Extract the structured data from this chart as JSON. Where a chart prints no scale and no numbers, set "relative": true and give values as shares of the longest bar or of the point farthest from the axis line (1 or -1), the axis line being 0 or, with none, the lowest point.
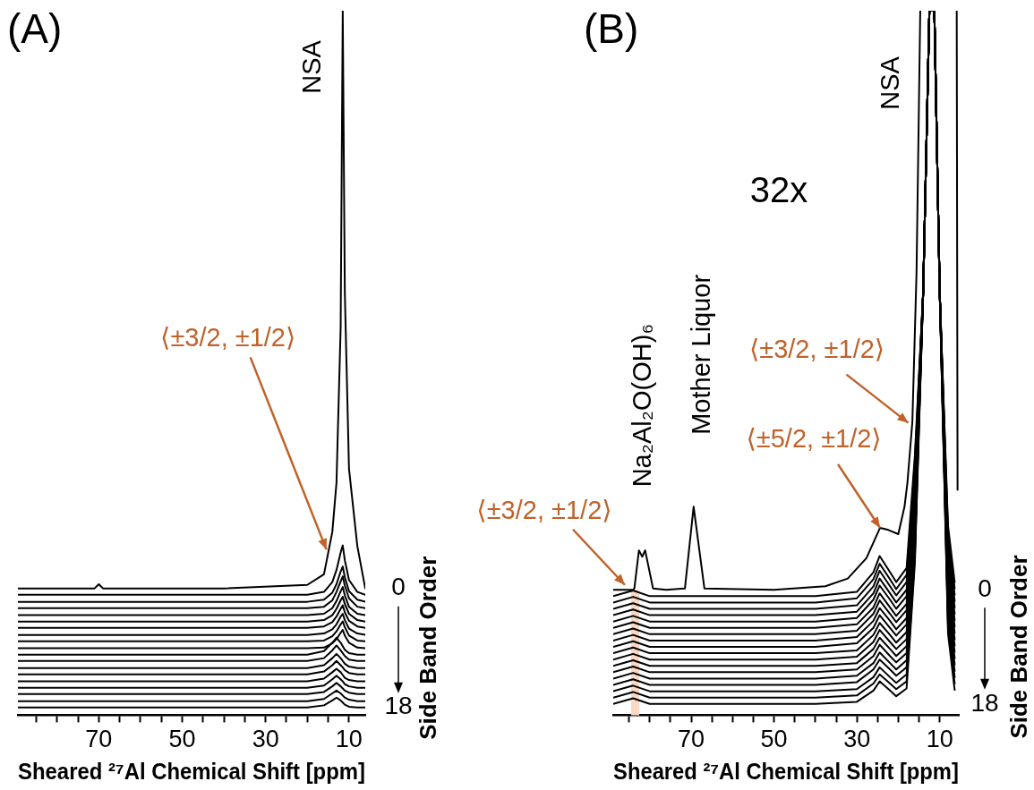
{
  "chart_data": [
    {
      "type": "line",
      "title": "(A)",
      "xlabel": "Sheared ²⁷Al Chemical Shift [ppm]",
      "y2label": "Side Band Order",
      "relative": true,
      "marker": "none",
      "xlim": [
        89.4,
        6.1
      ],
      "xticks": [
        {
          "value": 85,
          "label": null
        },
        {
          "value": 80,
          "label": null
        },
        {
          "value": 75,
          "label": null
        },
        70,
        {
          "value": 65,
          "label": null
        },
        {
          "value": 60,
          "label": null
        },
        {
          "value": 55,
          "label": null
        },
        50,
        {
          "value": 45,
          "label": null
        },
        {
          "value": 40,
          "label": null
        },
        {
          "value": 35,
          "label": null
        },
        30,
        {
          "value": 25,
          "label": null
        },
        {
          "value": 20,
          "label": null
        },
        {
          "value": 15,
          "label": null
        },
        10
      ],
      "x": [
        89.4,
        70,
        20,
        16,
        14,
        13,
        12,
        11.5,
        11,
        10,
        8,
        6.1
      ],
      "annotations": [
        {
          "text": "NSA",
          "x": 11.5,
          "y": 1
        },
        {
          "text": "⟨±3/2, ±1/2⟩",
          "x": 15.4,
          "y": 0.235
        }
      ],
      "series": [
        {
          "name": "0",
          "color": "#000000",
          "x": [
            89.4,
            80,
            71,
            70,
            69,
            40,
            20,
            16,
            14,
            13,
            12,
            11.5,
            11,
            10,
            8,
            6.1
          ],
          "values": [
            0.18,
            0.18,
            0.18,
            0.186,
            0.18,
            0.18,
            0.185,
            0.2,
            0.26,
            0.33,
            0.55,
            1,
            0.6,
            0.35,
            0.24,
            0.18
          ]
        },
        {
          "color": "#000000",
          "values": [
            0.171,
            0.171,
            0.171,
            0.175,
            0.189,
            0.206,
            0.231,
            0.241,
            0.22,
            0.192,
            0.175,
            0.171
          ]
        },
        {
          "color": "#000000",
          "values": [
            0.161,
            0.161,
            0.161,
            0.164,
            0.174,
            0.186,
            0.204,
            0.211,
            0.196,
            0.176,
            0.164,
            0.161
          ]
        },
        {
          "color": "#000000",
          "values": [
            0.152,
            0.152,
            0.152,
            0.154,
            0.163,
            0.175,
            0.19,
            0.197,
            0.184,
            0.166,
            0.154,
            0.152
          ]
        },
        {
          "color": "#000000",
          "values": [
            0.142,
            0.142,
            0.142,
            0.144,
            0.152,
            0.162,
            0.176,
            0.182,
            0.17,
            0.154,
            0.144,
            0.142
          ]
        },
        {
          "color": "#000000",
          "values": [
            0.133,
            0.133,
            0.133,
            0.135,
            0.142,
            0.151,
            0.163,
            0.168,
            0.158,
            0.144,
            0.135,
            0.133
          ]
        },
        {
          "color": "#000000",
          "values": [
            0.124,
            0.124,
            0.124,
            0.126,
            0.132,
            0.14,
            0.151,
            0.156,
            0.146,
            0.134,
            0.126,
            0.124
          ]
        },
        {
          "color": "#000000",
          "values": [
            0.114,
            0.114,
            0.114,
            0.116,
            0.122,
            0.129,
            0.14,
            0.144,
            0.135,
            0.123,
            0.116,
            0.114
          ]
        },
        {
          "color": "#000000",
          "values": [
            0.105,
            0.105,
            0.105,
            0.106,
            0.112,
            0.119,
            0.129,
            0.133,
            0.125,
            0.113,
            0.106,
            0.105
          ]
        },
        {
          "color": "#000000",
          "values": [
            0.095,
            0.095,
            0.095,
            0.096,
            0.102,
            0.108,
            0.117,
            0.121,
            0.113,
            0.103,
            0.096,
            0.095
          ]
        },
        {
          "color": "#000000",
          "values": [
            0.086,
            0.086,
            0.086,
            0.091,
            0.103,
            0.11,
            0.103,
            0.098,
            0.093,
            0.088,
            0.086,
            0.086
          ]
        },
        {
          "color": "#000000",
          "values": [
            0.077,
            0.077,
            0.077,
            0.081,
            0.092,
            0.099,
            0.092,
            0.088,
            0.084,
            0.079,
            0.077,
            0.077
          ]
        },
        {
          "color": "#000000",
          "values": [
            0.067,
            0.067,
            0.067,
            0.071,
            0.081,
            0.087,
            0.081,
            0.077,
            0.073,
            0.069,
            0.067,
            0.067
          ]
        },
        {
          "color": "#000000",
          "values": [
            0.058,
            0.058,
            0.058,
            0.062,
            0.071,
            0.077,
            0.071,
            0.068,
            0.064,
            0.06,
            0.058,
            0.058
          ]
        },
        {
          "color": "#000000",
          "values": [
            0.048,
            0.048,
            0.048,
            0.052,
            0.061,
            0.066,
            0.061,
            0.057,
            0.053,
            0.05,
            0.048,
            0.048
          ]
        },
        {
          "color": "#000000",
          "values": [
            0.039,
            0.039,
            0.039,
            0.042,
            0.051,
            0.056,
            0.051,
            0.048,
            0.044,
            0.041,
            0.039,
            0.039
          ]
        },
        {
          "color": "#000000",
          "values": [
            0.03,
            0.03,
            0.03,
            0.033,
            0.041,
            0.046,
            0.041,
            0.038,
            0.035,
            0.032,
            0.03,
            0.03
          ]
        },
        {
          "color": "#000000",
          "values": [
            0.02,
            0.02,
            0.02,
            0.023,
            0.031,
            0.035,
            0.031,
            0.028,
            0.025,
            0.022,
            0.02,
            0.02
          ]
        },
        {
          "name": "18",
          "color": "#000000",
          "values": [
            0.011,
            0.011,
            0.011,
            0.014,
            0.021,
            0.025,
            0.021,
            0.018,
            0.015,
            0.012,
            0.011,
            0.011
          ]
        }
      ]
    },
    {
      "type": "line",
      "title": "(B)",
      "xlabel": "Sheared ²⁷Al Chemical Shift [ppm]",
      "y2label": "Side Band Order",
      "relative": true,
      "marker": "none",
      "xlim": [
        88.8,
        5.4
      ],
      "xticks": [
        {
          "value": 85,
          "label": null
        },
        {
          "value": 80,
          "label": null
        },
        {
          "value": 75,
          "label": null
        },
        70,
        {
          "value": 65,
          "label": null
        },
        {
          "value": 60,
          "label": null
        },
        {
          "value": 55,
          "label": null
        },
        50,
        {
          "value": 45,
          "label": null
        },
        {
          "value": 40,
          "label": null
        },
        {
          "value": 35,
          "label": null
        },
        30,
        {
          "value": 25,
          "label": null
        },
        {
          "value": 20,
          "label": null
        },
        {
          "value": 15,
          "label": null
        },
        10
      ],
      "x": [
        88.8,
        84,
        80,
        40,
        30,
        26,
        24.5,
        22,
        20.5,
        18,
        16,
        14,
        12.5,
        11.3,
        10,
        8,
        6.4
      ],
      "bands": [
        {
          "axis": "x",
          "from": 84.5,
          "to": 82.5,
          "color": "#f9d9c4"
        }
      ],
      "annotations": [
        "32x",
        {
          "text": "NSA",
          "x": 11.3,
          "y": 1
        },
        {
          "text": "Na₂Al₂O(OH)₆",
          "x": 82.6,
          "y": 0.234
        },
        {
          "text": "Mother Liquor",
          "x": 69.4,
          "y": 0.296
        },
        {
          "text": "⟨±3/2, ±1/2⟩",
          "x": 17.6,
          "y": 0.415
        },
        {
          "text": "⟨±5/2, ±1/2⟩",
          "x": 24.4,
          "y": 0.266
        },
        {
          "text": "⟨±3/2, ±1/2⟩",
          "x": 86,
          "y": 0.185
        }
      ],
      "series": [
        {
          "name": "0",
          "color": "#000000",
          "x": [
            88.8,
            84,
            83.7,
            82.6,
            81.8,
            81.1,
            79.2,
            76,
            71.5,
            69.4,
            66.8,
            50,
            37.6,
            32.2,
            27.7,
            24.4,
            22.4,
            20,
            18.5,
            17.8,
            16.6,
            15.6,
            14.7,
            10,
            5.9,
            5.7
          ],
          "values": [
            0.178,
            0.178,
            0.18,
            0.234,
            0.225,
            0.234,
            0.18,
            0.178,
            0.18,
            0.296,
            0.18,
            0.178,
            0.183,
            0.194,
            0.223,
            0.266,
            0.263,
            0.257,
            0.296,
            0.33,
            0.417,
            0.629,
            1,
            null,
            1,
            0.32
          ]
        },
        {
          "color": "#000000",
          "values": [
            0.169,
            0.177,
            0.169,
            0.169,
            0.175,
            0.203,
            0.226,
            0.203,
            0.189,
            0.209,
            0.369,
            0.6,
            1,
            1,
            0.6,
            0.269,
            0.189
          ]
        },
        {
          "color": "#000000",
          "values": [
            0.16,
            0.168,
            0.16,
            0.16,
            0.166,
            0.193,
            0.215,
            0.193,
            0.179,
            0.199,
            0.36,
            0.6,
            1,
            1,
            0.6,
            0.26,
            0.18
          ]
        },
        {
          "color": "#000000",
          "values": [
            0.151,
            0.159,
            0.151,
            0.151,
            0.156,
            0.183,
            0.205,
            0.183,
            0.17,
            0.189,
            0.351,
            0.6,
            1,
            1,
            0.6,
            0.251,
            0.171
          ]
        },
        {
          "color": "#000000",
          "values": [
            0.142,
            0.15,
            0.142,
            0.142,
            0.147,
            0.173,
            0.194,
            0.173,
            0.16,
            0.178,
            0.342,
            0.6,
            1,
            1,
            0.6,
            0.242,
            0.162
          ]
        },
        {
          "color": "#000000",
          "values": [
            0.133,
            0.141,
            0.133,
            0.133,
            0.138,
            0.164,
            0.184,
            0.164,
            0.151,
            0.169,
            0.333,
            0.6,
            1,
            1,
            0.6,
            0.233,
            0.153
          ]
        },
        {
          "color": "#000000",
          "values": [
            0.124,
            0.132,
            0.124,
            0.124,
            0.129,
            0.153,
            0.173,
            0.153,
            0.141,
            0.158,
            0.324,
            0.6,
            1,
            1,
            0.6,
            0.224,
            0.144
          ]
        },
        {
          "color": "#000000",
          "values": [
            0.115,
            0.123,
            0.115,
            0.115,
            0.12,
            0.144,
            0.163,
            0.144,
            0.132,
            0.149,
            0.315,
            0.6,
            1,
            1,
            0.6,
            0.215,
            0.135
          ]
        },
        {
          "color": "#000000",
          "values": [
            0.106,
            0.114,
            0.106,
            0.106,
            0.111,
            0.134,
            0.152,
            0.134,
            0.122,
            0.138,
            0.306,
            0.6,
            1,
            1,
            0.6,
            0.206,
            0.126
          ]
        },
        {
          "color": "#000000",
          "values": [
            0.097,
            0.105,
            0.097,
            0.097,
            0.102,
            0.124,
            0.142,
            0.124,
            0.113,
            0.129,
            0.297,
            0.6,
            1,
            1,
            0.6,
            0.197,
            0.117
          ]
        },
        {
          "color": "#000000",
          "values": [
            0.088,
            0.096,
            0.088,
            0.088,
            0.092,
            0.114,
            0.131,
            0.114,
            0.103,
            0.118,
            0.288,
            0.6,
            1,
            1,
            0.6,
            0.188,
            0.108
          ]
        },
        {
          "color": "#000000",
          "values": [
            0.079,
            0.087,
            0.079,
            0.079,
            0.083,
            0.104,
            0.121,
            0.104,
            0.094,
            0.108,
            0.279,
            0.6,
            1,
            1,
            0.6,
            0.179,
            0.099
          ]
        },
        {
          "color": "#000000",
          "values": [
            0.07,
            0.078,
            0.07,
            0.07,
            0.074,
            0.094,
            0.11,
            0.094,
            0.084,
            0.098,
            0.27,
            0.6,
            1,
            1,
            0.6,
            0.17,
            0.09
          ]
        },
        {
          "color": "#000000",
          "values": [
            0.061,
            0.069,
            0.061,
            0.061,
            0.065,
            0.084,
            0.1,
            0.084,
            0.075,
            0.088,
            0.261,
            0.6,
            1,
            1,
            0.6,
            0.161,
            0.081
          ]
        },
        {
          "color": "#000000",
          "values": [
            0.052,
            0.06,
            0.052,
            0.052,
            0.056,
            0.074,
            0.089,
            0.074,
            0.065,
            0.078,
            0.252,
            0.6,
            1,
            1,
            0.6,
            0.152,
            0.072
          ]
        },
        {
          "color": "#000000",
          "values": [
            0.043,
            0.051,
            0.043,
            0.043,
            0.047,
            0.065,
            0.079,
            0.065,
            0.056,
            0.068,
            0.243,
            0.6,
            1,
            1,
            0.6,
            0.143,
            0.063
          ]
        },
        {
          "color": "#000000",
          "values": [
            0.034,
            0.042,
            0.034,
            0.034,
            0.037,
            0.054,
            0.068,
            0.054,
            0.046,
            0.058,
            0.234,
            0.6,
            1,
            1,
            0.6,
            0.134,
            0.054
          ]
        },
        {
          "color": "#000000",
          "values": [
            0.025,
            0.033,
            0.025,
            0.025,
            0.028,
            0.045,
            0.058,
            0.045,
            0.037,
            0.048,
            0.225,
            0.6,
            1,
            1,
            0.6,
            0.125,
            0.045
          ]
        },
        {
          "name": "18",
          "color": "#000000",
          "values": [
            0.016,
            0.024,
            0.016,
            0.016,
            0.019,
            0.035,
            0.048,
            0.035,
            0.027,
            0.038,
            0.216,
            0.6,
            1,
            1,
            0.6,
            0.116,
            0.036
          ]
        }
      ]
    }
  ]
}
